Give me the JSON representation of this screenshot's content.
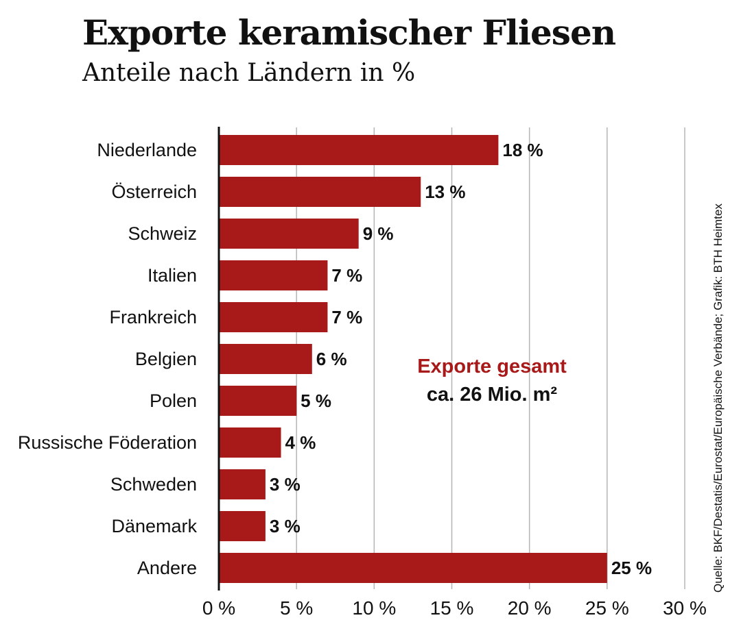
{
  "chart_data": {
    "type": "bar",
    "orientation": "horizontal",
    "title": "Exporte keramischer Fliesen",
    "subtitle": "Anteile nach Ländern in %",
    "categories": [
      "Niederlande",
      "Österreich",
      "Schweiz",
      "Italien",
      "Frankreich",
      "Belgien",
      "Polen",
      "Russische Föderation",
      "Schweden",
      "Dänemark",
      "Andere"
    ],
    "values": [
      18,
      13,
      9,
      7,
      7,
      6,
      5,
      4,
      3,
      3,
      25
    ],
    "data_labels": [
      "18 %",
      "13 %",
      "9 %",
      "7 %",
      "7 %",
      "6 %",
      "5 %",
      "4 %",
      "3 %",
      "3 %",
      "25 %"
    ],
    "xlim": [
      0,
      30
    ],
    "xticks": [
      0,
      5,
      10,
      15,
      20,
      25,
      30
    ],
    "xtick_labels": [
      "0 %",
      "5 %",
      "10 %",
      "15 %",
      "20 %",
      "25 %",
      "30 %"
    ],
    "grid": "vertical",
    "bar_color": "#a8191a",
    "annotation": {
      "line1": "Exporte gesamt",
      "line2": "ca. 26 Mio. m²",
      "line1_color": "#a8191a"
    },
    "source": "Quelle: BKF/Destatis/Eurostat/Europäische Verbände; Grafik: BTH Heimtex"
  }
}
